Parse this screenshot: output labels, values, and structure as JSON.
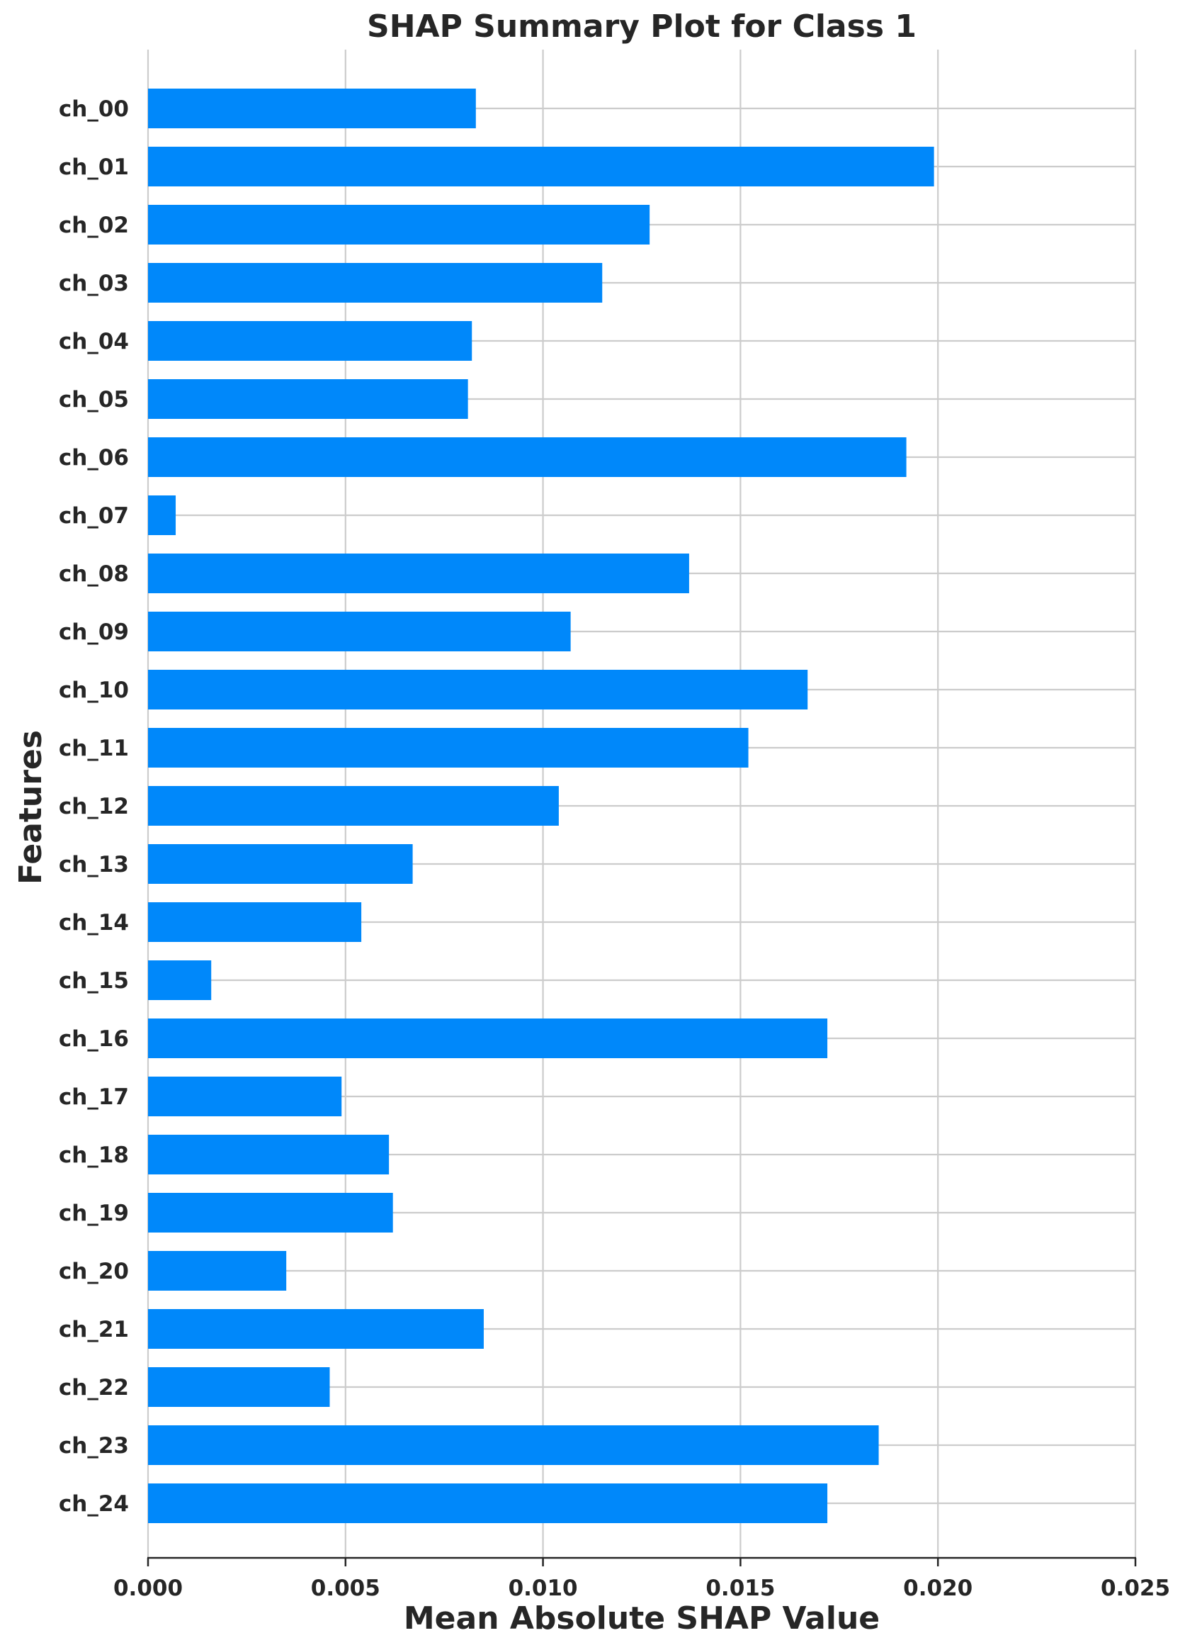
{
  "chart_data": {
    "type": "bar",
    "orientation": "horizontal",
    "title": "SHAP Summary Plot for Class 1",
    "xlabel": "Mean Absolute SHAP Value",
    "ylabel": "Features",
    "xlim": [
      0.0,
      0.025
    ],
    "xticks": [
      "0.000",
      "0.005",
      "0.010",
      "0.015",
      "0.020",
      "0.025"
    ],
    "xtick_values": [
      0.0,
      0.005,
      0.01,
      0.015,
      0.02,
      0.025
    ],
    "grid": true,
    "bar_color": "#0088fa",
    "categories": [
      "ch_00",
      "ch_01",
      "ch_02",
      "ch_03",
      "ch_04",
      "ch_05",
      "ch_06",
      "ch_07",
      "ch_08",
      "ch_09",
      "ch_10",
      "ch_11",
      "ch_12",
      "ch_13",
      "ch_14",
      "ch_15",
      "ch_16",
      "ch_17",
      "ch_18",
      "ch_19",
      "ch_20",
      "ch_21",
      "ch_22",
      "ch_23",
      "ch_24"
    ],
    "values": [
      0.0083,
      0.0199,
      0.0127,
      0.0115,
      0.0082,
      0.0081,
      0.0192,
      0.0007,
      0.0137,
      0.0107,
      0.0167,
      0.0152,
      0.0104,
      0.0067,
      0.0054,
      0.0016,
      0.0172,
      0.0049,
      0.0061,
      0.0062,
      0.0035,
      0.0085,
      0.0046,
      0.0185,
      0.0172
    ]
  }
}
